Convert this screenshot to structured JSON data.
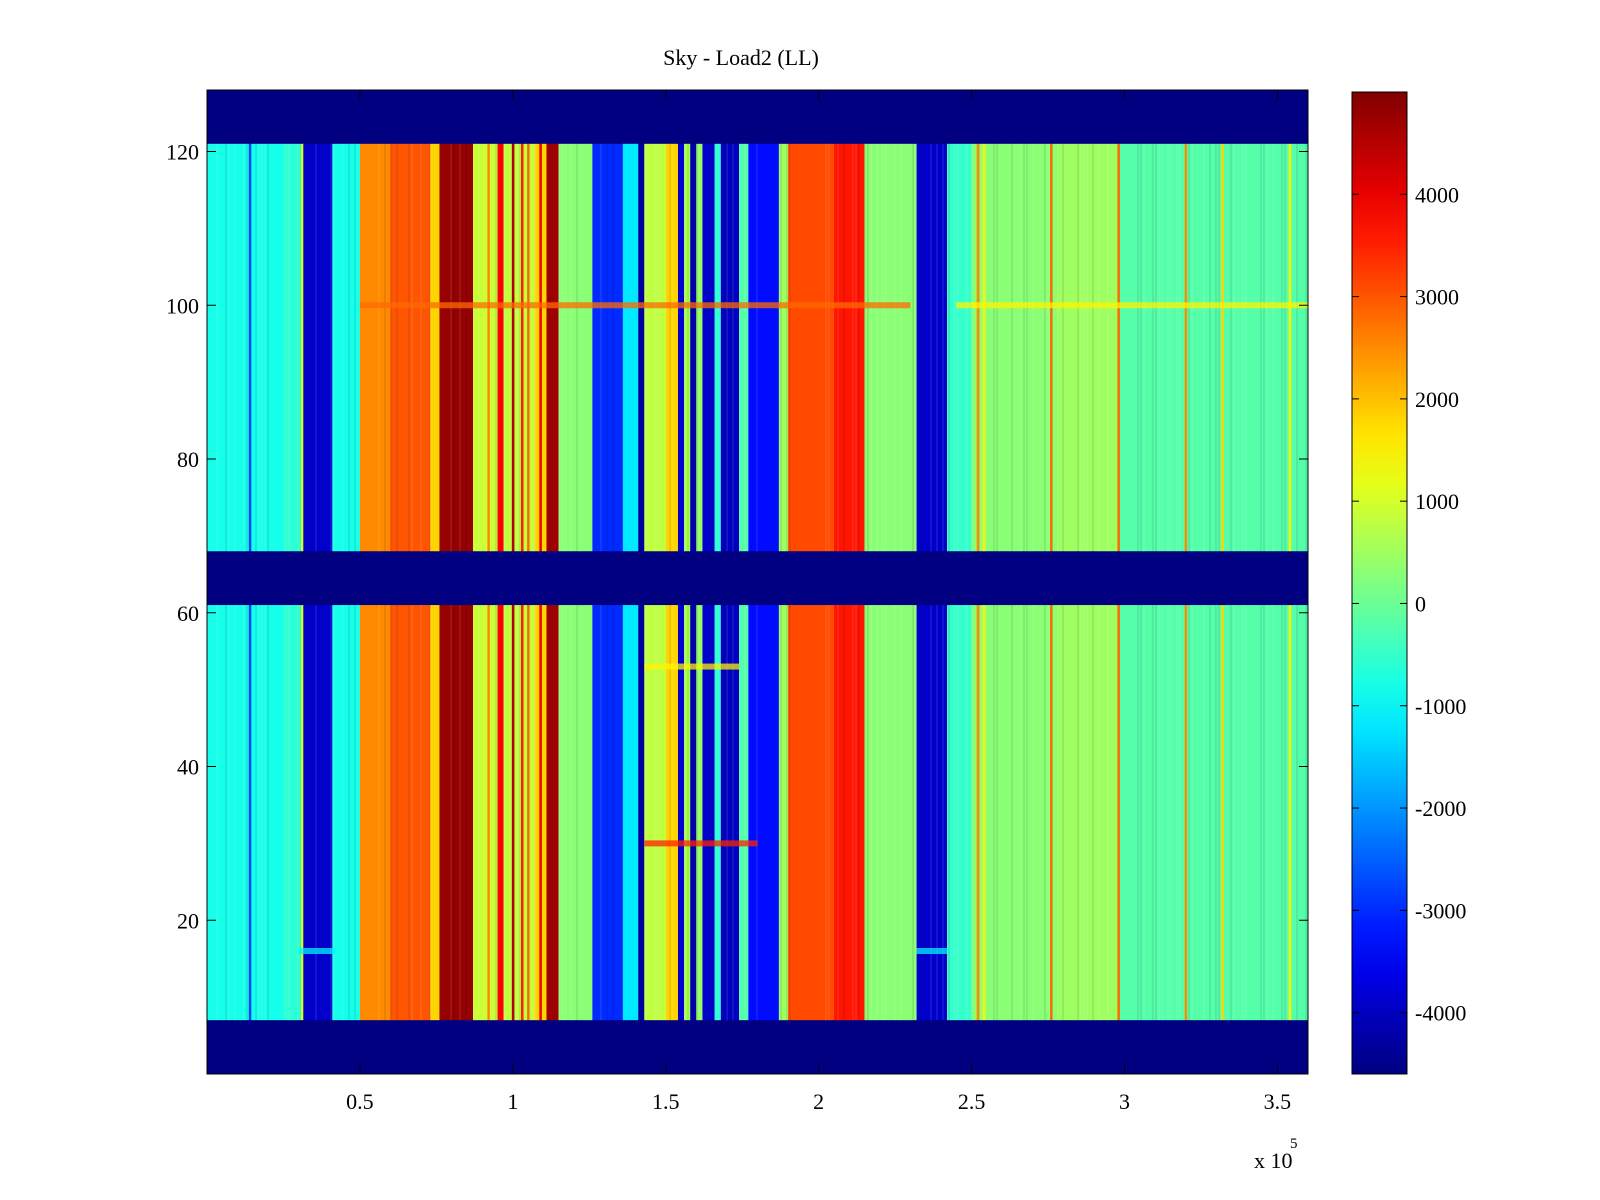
{
  "chart_data": {
    "type": "heatmap",
    "title": "Sky - Load2 (LL)",
    "xlabel": "",
    "ylabel": "",
    "x_exponent_label": "x 10",
    "x_exponent_power": "5",
    "xlim": [
      0,
      3.6
    ],
    "ylim": [
      0,
      128
    ],
    "x_ticks": [
      0.5,
      1,
      1.5,
      2,
      2.5,
      3,
      3.5
    ],
    "x_tick_labels": [
      "0.5",
      "1",
      "1.5",
      "2",
      "2.5",
      "3",
      "3.5"
    ],
    "y_ticks": [
      20,
      40,
      60,
      80,
      100,
      120
    ],
    "y_tick_labels": [
      "20",
      "40",
      "60",
      "80",
      "100",
      "120"
    ],
    "colorbar": {
      "range": [
        -4600,
        5000
      ],
      "ticks": [
        4000,
        3000,
        2000,
        1000,
        0,
        -1000,
        -2000,
        -3000,
        -4000
      ],
      "tick_labels": [
        "4000",
        "3000",
        "2000",
        "1000",
        "0",
        "-1000",
        "-2000",
        "-3000",
        "-4000"
      ],
      "colormap": "jet"
    },
    "masked_row_bands": [
      [
        0,
        7
      ],
      [
        61,
        68
      ],
      [
        121,
        128
      ]
    ],
    "masked_value": -4600,
    "column_bands": [
      {
        "x0": 0.0,
        "x1": 0.25,
        "value": -800
      },
      {
        "x0": 0.25,
        "x1": 0.31,
        "value": -600
      },
      {
        "x0": 0.31,
        "x1": 0.41,
        "value": -3900
      },
      {
        "x0": 0.41,
        "x1": 0.5,
        "value": -800
      },
      {
        "x0": 0.5,
        "x1": 0.6,
        "value": 2500
      },
      {
        "x0": 0.6,
        "x1": 0.73,
        "value": 3000
      },
      {
        "x0": 0.73,
        "x1": 0.76,
        "value": 1800
      },
      {
        "x0": 0.76,
        "x1": 0.87,
        "value": 4800
      },
      {
        "x0": 0.87,
        "x1": 0.95,
        "value": 900
      },
      {
        "x0": 0.95,
        "x1": 0.97,
        "value": 3800
      },
      {
        "x0": 0.97,
        "x1": 1.07,
        "value": 800
      },
      {
        "x0": 1.07,
        "x1": 1.11,
        "value": 1800
      },
      {
        "x0": 1.11,
        "x1": 1.15,
        "value": 4700
      },
      {
        "x0": 1.15,
        "x1": 1.26,
        "value": 300
      },
      {
        "x0": 1.26,
        "x1": 1.36,
        "value": -3000
      },
      {
        "x0": 1.36,
        "x1": 1.41,
        "value": -1200
      },
      {
        "x0": 1.41,
        "x1": 1.43,
        "value": -4300
      },
      {
        "x0": 1.43,
        "x1": 1.5,
        "value": 800
      },
      {
        "x0": 1.5,
        "x1": 1.54,
        "value": 1800
      },
      {
        "x0": 1.54,
        "x1": 1.56,
        "value": -3800
      },
      {
        "x0": 1.56,
        "x1": 1.58,
        "value": 600
      },
      {
        "x0": 1.58,
        "x1": 1.6,
        "value": -4200
      },
      {
        "x0": 1.6,
        "x1": 1.62,
        "value": 400
      },
      {
        "x0": 1.62,
        "x1": 1.66,
        "value": -3900
      },
      {
        "x0": 1.66,
        "x1": 1.68,
        "value": -600
      },
      {
        "x0": 1.68,
        "x1": 1.74,
        "value": -4000
      },
      {
        "x0": 1.74,
        "x1": 1.77,
        "value": -200
      },
      {
        "x0": 1.77,
        "x1": 1.87,
        "value": -3300
      },
      {
        "x0": 1.87,
        "x1": 1.9,
        "value": 500
      },
      {
        "x0": 1.9,
        "x1": 2.05,
        "value": 3100
      },
      {
        "x0": 2.05,
        "x1": 2.15,
        "value": 3600
      },
      {
        "x0": 2.15,
        "x1": 2.32,
        "value": 300
      },
      {
        "x0": 2.32,
        "x1": 2.42,
        "value": -3900
      },
      {
        "x0": 2.42,
        "x1": 2.5,
        "value": -500
      },
      {
        "x0": 2.5,
        "x1": 2.78,
        "value": 300
      },
      {
        "x0": 2.78,
        "x1": 2.98,
        "value": 500
      },
      {
        "x0": 2.98,
        "x1": 3.6,
        "value": -200
      }
    ],
    "vertical_streaks": [
      {
        "x": 0.14,
        "value": -2800
      },
      {
        "x": 0.31,
        "value": 1000
      },
      {
        "x": 0.92,
        "value": 2500
      },
      {
        "x": 1.0,
        "value": 4500
      },
      {
        "x": 1.03,
        "value": 3500
      },
      {
        "x": 1.05,
        "value": 2800
      },
      {
        "x": 1.09,
        "value": 4000
      },
      {
        "x": 2.52,
        "value": 2500
      },
      {
        "x": 2.54,
        "value": 1500
      },
      {
        "x": 2.76,
        "value": 2800
      },
      {
        "x": 2.98,
        "value": 2800
      },
      {
        "x": 3.2,
        "value": 2500
      },
      {
        "x": 3.32,
        "value": 1800
      },
      {
        "x": 3.54,
        "value": 1500
      }
    ],
    "horizontal_streaks": [
      {
        "y": 100,
        "x0": 0.5,
        "x1": 2.3,
        "value": 2800
      },
      {
        "y": 100,
        "x0": 2.45,
        "x1": 3.6,
        "value": 1500
      },
      {
        "y": 16,
        "x0": 0.3,
        "x1": 0.42,
        "value": -1100
      },
      {
        "y": 16,
        "x0": 2.32,
        "x1": 2.42,
        "value": -1100
      },
      {
        "y": 53,
        "x0": 1.43,
        "x1": 1.74,
        "value": 1500
      },
      {
        "y": 30,
        "x0": 1.43,
        "x1": 1.8,
        "value": 3500
      }
    ],
    "legend": "none",
    "grid": false
  }
}
